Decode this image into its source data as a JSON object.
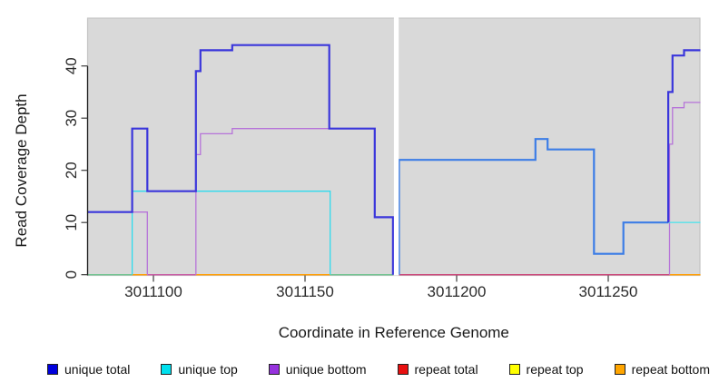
{
  "figure": {
    "ylabel": "Read Coverage Depth",
    "xlabel": "Coordinate in Reference Genome",
    "plot_bg": "#d9d9d9",
    "plot_border": "#c4c4c4",
    "axis_color": "#1a1a1a",
    "tick_color": "#3d3d3d"
  },
  "chart_data": {
    "type": "line",
    "step": true,
    "title": "",
    "xlabel": "Coordinate in Reference Genome",
    "ylabel": "Read Coverage Depth",
    "xlim": [
      3011078.3,
      3011280.4
    ],
    "ylim": [
      0,
      49
    ],
    "x_ticks": [
      3011100,
      3011150,
      3011200,
      3011250
    ],
    "y_ticks": [
      0,
      10,
      20,
      30,
      40
    ],
    "grid": false,
    "legend_position": "bottom",
    "gap_band": {
      "from": 3011179.3,
      "to": 3011180.9
    },
    "series": [
      {
        "name": "unique total",
        "color": "#0000dd",
        "steps": [
          [
            3011078,
            12
          ],
          [
            3011093,
            28
          ],
          [
            3011098,
            16
          ],
          [
            3011114,
            39
          ],
          [
            3011115.5,
            43
          ],
          [
            3011126,
            44
          ],
          [
            3011158,
            28
          ],
          [
            3011173,
            11
          ],
          [
            3011179,
            0
          ],
          [
            3011181,
            22
          ],
          [
            3011226,
            26
          ],
          [
            3011230,
            24
          ],
          [
            3011245,
            4
          ],
          [
            3011255,
            10
          ],
          [
            3011270,
            35
          ],
          [
            3011271,
            42
          ],
          [
            3011275,
            43
          ]
        ]
      },
      {
        "name": "unique top",
        "color": "#00e0ee",
        "steps": [
          [
            3011078,
            0
          ],
          [
            3011093,
            16
          ],
          [
            3011158,
            0
          ],
          [
            3011181,
            22
          ],
          [
            3011226,
            26
          ],
          [
            3011230,
            24
          ],
          [
            3011245,
            4
          ],
          [
            3011255,
            10
          ]
        ]
      },
      {
        "name": "unique bottom",
        "color": "#9632dd",
        "steps": [
          [
            3011078,
            12
          ],
          [
            3011098,
            0
          ],
          [
            3011114,
            23
          ],
          [
            3011115.5,
            27
          ],
          [
            3011126,
            28
          ],
          [
            3011158,
            28
          ],
          [
            3011173,
            11
          ],
          [
            3011179,
            0
          ],
          [
            3011270,
            25
          ],
          [
            3011271,
            32
          ],
          [
            3011275,
            33
          ]
        ]
      },
      {
        "name": "repeat total",
        "color": "#e81010",
        "steps": [
          [
            3011078,
            0
          ]
        ]
      },
      {
        "name": "repeat top",
        "color": "#ffff00",
        "steps": [
          [
            3011078,
            0
          ]
        ]
      },
      {
        "name": "repeat bottom",
        "color": "#ffa500",
        "steps": [
          [
            3011078,
            0
          ]
        ]
      }
    ],
    "render": {
      "baseline_segments": [
        {
          "x1": 3011078.3,
          "x2": 3011093,
          "color": "#76c493"
        },
        {
          "x1": 3011093,
          "x2": 3011098,
          "color": "#ffa00a"
        },
        {
          "x1": 3011098,
          "x2": 3011114,
          "color": "#c95fa6"
        },
        {
          "x1": 3011114,
          "x2": 3011158.3,
          "color": "#ffa00a"
        },
        {
          "x1": 3011158.3,
          "x2": 3011179,
          "color": "#76c493"
        },
        {
          "x1": 3011181,
          "x2": 3011270.2,
          "color": "#cc4b7d"
        },
        {
          "x1": 3011270.2,
          "x2": 3011280.4,
          "color": "#ffa00a"
        }
      ],
      "paths": [
        {
          "name": "unique-bottom-left-a",
          "color": "#b673d9",
          "width": 1.3,
          "pts": [
            [
              3011078.3,
              12
            ],
            [
              3011098,
              12
            ],
            [
              3011098,
              0
            ]
          ]
        },
        {
          "name": "unique-bottom-left-b",
          "color": "#b673d9",
          "width": 1.3,
          "pts": [
            [
              3011114,
              0
            ],
            [
              3011114,
              23
            ],
            [
              3011115.5,
              23
            ],
            [
              3011115.5,
              27
            ],
            [
              3011126,
              27
            ],
            [
              3011126,
              28
            ],
            [
              3011173,
              28
            ],
            [
              3011173,
              11
            ],
            [
              3011179,
              11
            ],
            [
              3011179,
              0
            ]
          ]
        },
        {
          "name": "unique-top-left",
          "color": "#2fdbee",
          "width": 1.3,
          "pts": [
            [
              3011093,
              0
            ],
            [
              3011093,
              16
            ],
            [
              3011158.3,
              16
            ],
            [
              3011158.3,
              0
            ]
          ]
        },
        {
          "name": "unique-total-left",
          "color": "#3a36db",
          "width": 2.2,
          "pts": [
            [
              3011078.3,
              12
            ],
            [
              3011093,
              12
            ],
            [
              3011093,
              28
            ],
            [
              3011098,
              28
            ],
            [
              3011098,
              16
            ],
            [
              3011114,
              16
            ],
            [
              3011114,
              39
            ],
            [
              3011115.5,
              39
            ],
            [
              3011115.5,
              43
            ],
            [
              3011126,
              43
            ],
            [
              3011126,
              44
            ],
            [
              3011158,
              44
            ],
            [
              3011158,
              28
            ],
            [
              3011173,
              28
            ],
            [
              3011173,
              11
            ],
            [
              3011179,
              11
            ],
            [
              3011179,
              0
            ]
          ]
        },
        {
          "name": "unique-bottom-right",
          "color": "#b673d9",
          "width": 1.3,
          "pts": [
            [
              3011270.2,
              0
            ],
            [
              3011270.2,
              25
            ],
            [
              3011271.2,
              25
            ],
            [
              3011271.2,
              32
            ],
            [
              3011275,
              32
            ],
            [
              3011275,
              33
            ],
            [
              3011280.4,
              33
            ]
          ]
        },
        {
          "name": "unique-top-right",
          "color": "#55e2ea",
          "width": 1.3,
          "pts": [
            [
              3011269.8,
              10
            ],
            [
              3011280.4,
              10
            ]
          ]
        },
        {
          "name": "unique-total-right-pale",
          "color": "#3c7de6",
          "width": 2.2,
          "pts": [
            [
              3011181,
              0
            ],
            [
              3011181,
              22
            ],
            [
              3011226,
              22
            ],
            [
              3011226,
              26
            ],
            [
              3011230,
              26
            ],
            [
              3011230,
              24
            ],
            [
              3011245.3,
              24
            ],
            [
              3011245.3,
              4
            ],
            [
              3011255,
              4
            ],
            [
              3011255,
              10
            ],
            [
              3011269.8,
              10
            ]
          ]
        },
        {
          "name": "unique-total-right-dark",
          "color": "#3a36db",
          "width": 2.2,
          "pts": [
            [
              3011269.8,
              10
            ],
            [
              3011269.8,
              35
            ],
            [
              3011271.2,
              35
            ],
            [
              3011271.2,
              42
            ],
            [
              3011275,
              42
            ],
            [
              3011275,
              43
            ],
            [
              3011280.4,
              43
            ]
          ]
        }
      ]
    },
    "legend": [
      {
        "label": "unique total",
        "color": "#0000dd"
      },
      {
        "label": "unique top",
        "color": "#00e0ee"
      },
      {
        "label": "unique bottom",
        "color": "#9632dd"
      },
      {
        "label": "repeat total",
        "color": "#e81010"
      },
      {
        "label": "repeat top",
        "color": "#ffff00"
      },
      {
        "label": "repeat bottom",
        "color": "#ffa500"
      }
    ]
  }
}
